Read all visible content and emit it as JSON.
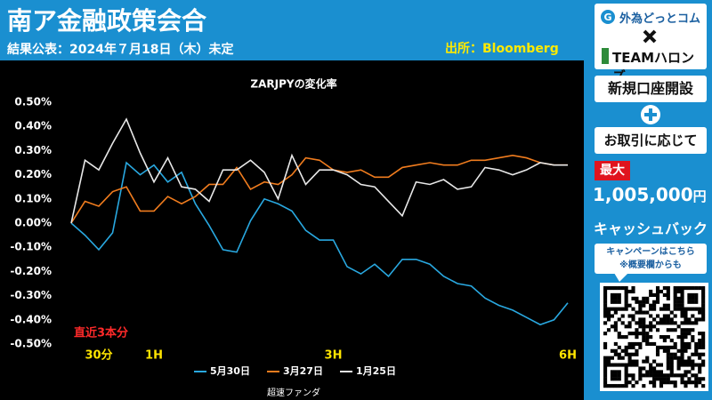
{
  "header": {
    "title": "南ア金融政策会合",
    "subtitle": "結果公表：2024年７月18日（木）未定",
    "source": "出所：Bloomberg"
  },
  "sidebar": {
    "brand": "外為どっとコム",
    "partner": "TEAMハロンズ",
    "line1": "新規口座開設",
    "line2": "お取引に応じて",
    "badge": "最大",
    "amount": "1,005,000",
    "unit": "円",
    "cashback": "キャッシュバック",
    "campaign": [
      "キャンペーンはこちら",
      "※概要欄からも"
    ]
  },
  "footer": "超速ファンダ",
  "chart_data": {
    "type": "line",
    "title": "ZARJPYの変化率",
    "annotation": "直近3本分",
    "categories": [
      null,
      null,
      "30分",
      null,
      null,
      null,
      "1H",
      null,
      null,
      null,
      null,
      null,
      null,
      null,
      null,
      null,
      null,
      null,
      null,
      "3H",
      null,
      null,
      null,
      null,
      null,
      null,
      null,
      null,
      null,
      null,
      null,
      null,
      null,
      null,
      null,
      null,
      "6H"
    ],
    "ylim": [
      -0.5,
      0.5
    ],
    "yticks": [
      {
        "value": 0.5,
        "label": "0.50%"
      },
      {
        "value": 0.4,
        "label": "0.40%"
      },
      {
        "value": 0.3,
        "label": "0.30%"
      },
      {
        "value": 0.2,
        "label": "0.20%"
      },
      {
        "value": 0.1,
        "label": "0.10%"
      },
      {
        "value": 0,
        "label": "0.00%"
      },
      {
        "value": -0.1,
        "label": "-0.10%"
      },
      {
        "value": -0.2,
        "label": "-0.20%"
      },
      {
        "value": -0.3,
        "label": "-0.30%"
      },
      {
        "value": -0.4,
        "label": "-0.40%"
      },
      {
        "value": -0.5,
        "label": "-0.50%"
      }
    ],
    "grid": false,
    "series": [
      {
        "name": "5月30日",
        "color": "#29a8e0",
        "values": [
          0,
          -0.05,
          -0.11,
          -0.04,
          0.25,
          0.2,
          0.24,
          0.17,
          0.21,
          0.08,
          -0.01,
          -0.11,
          -0.12,
          0.01,
          0.1,
          0.08,
          0.05,
          -0.03,
          -0.07,
          -0.07,
          -0.18,
          -0.21,
          -0.17,
          -0.22,
          -0.15,
          -0.15,
          -0.17,
          -0.22,
          -0.25,
          -0.26,
          -0.31,
          -0.34,
          -0.36,
          -0.39,
          -0.42,
          -0.4,
          -0.33
        ]
      },
      {
        "name": "3月27日",
        "color": "#f07c1e",
        "values": [
          0,
          0.09,
          0.07,
          0.13,
          0.15,
          0.05,
          0.05,
          0.11,
          0.08,
          0.11,
          0.16,
          0.16,
          0.23,
          0.14,
          0.17,
          0.16,
          0.2,
          0.27,
          0.26,
          0.22,
          0.21,
          0.22,
          0.19,
          0.19,
          0.23,
          0.24,
          0.25,
          0.24,
          0.24,
          0.26,
          0.26,
          0.27,
          0.28,
          0.27,
          0.25,
          0.24,
          0.24
        ]
      },
      {
        "name": "1月25日",
        "color": "#e8e8e8",
        "values": [
          0,
          0.26,
          0.22,
          0.33,
          0.43,
          0.29,
          0.17,
          0.27,
          0.15,
          0.14,
          0.09,
          0.22,
          0.22,
          0.26,
          0.21,
          0.1,
          0.28,
          0.16,
          0.22,
          0.22,
          0.2,
          0.16,
          0.15,
          0.09,
          0.03,
          0.17,
          0.16,
          0.18,
          0.14,
          0.15,
          0.23,
          0.22,
          0.2,
          0.22,
          0.25,
          0.24,
          0.24
        ]
      }
    ]
  }
}
